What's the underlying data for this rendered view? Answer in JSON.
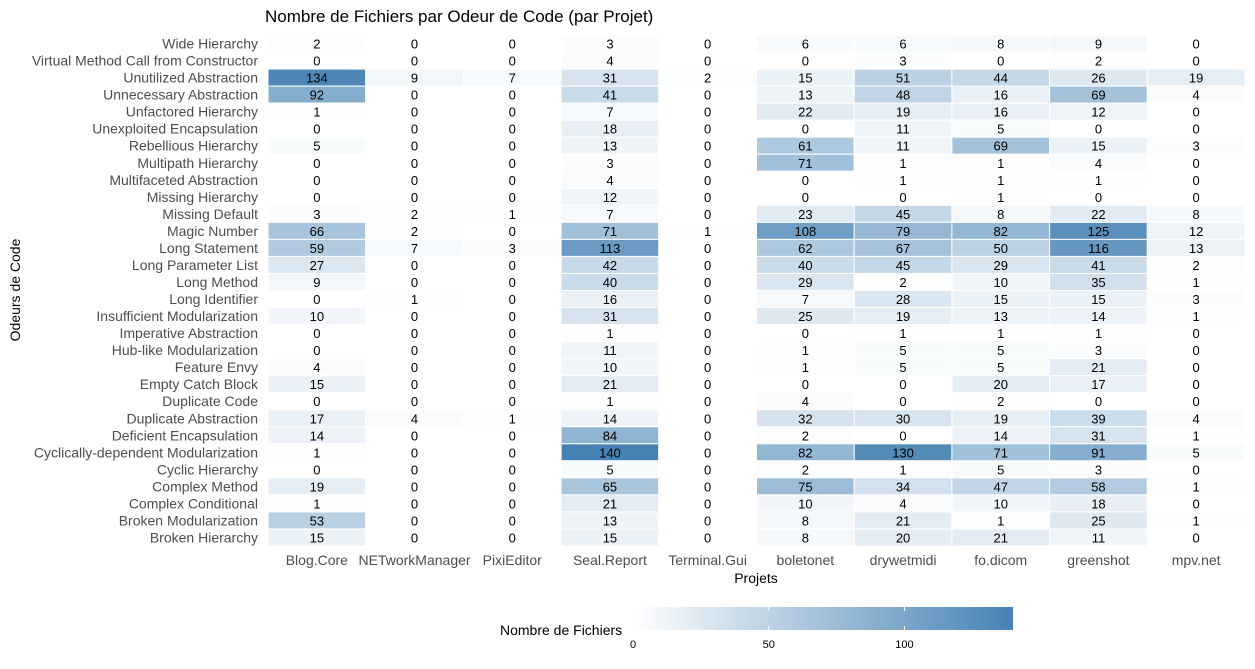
{
  "chart_data": {
    "type": "heatmap",
    "title": "Nombre de Fichiers par Odeur de Code (par Projet)",
    "xlabel": "Projets",
    "ylabel": "Odeurs de Code",
    "x": [
      "Blog.Core",
      "NETworkManager",
      "PixiEditor",
      "Seal.Report",
      "Terminal.Gui",
      "boletonet",
      "drywetmidi",
      "fo.dicom",
      "greenshot",
      "mpv.net"
    ],
    "y": [
      "Wide Hierarchy",
      "Virtual Method Call from Constructor",
      "Unutilized Abstraction",
      "Unnecessary Abstraction",
      "Unfactored Hierarchy",
      "Unexploited Encapsulation",
      "Rebellious Hierarchy",
      "Multipath Hierarchy",
      "Multifaceted Abstraction",
      "Missing Hierarchy",
      "Missing Default",
      "Magic Number",
      "Long Statement",
      "Long Parameter List",
      "Long Method",
      "Long Identifier",
      "Insufficient Modularization",
      "Imperative Abstraction",
      "Hub-like Modularization",
      "Feature Envy",
      "Empty Catch Block",
      "Duplicate Code",
      "Duplicate Abstraction",
      "Deficient Encapsulation",
      "Cyclically-dependent Modularization",
      "Cyclic Hierarchy",
      "Complex Method",
      "Complex Conditional",
      "Broken Modularization",
      "Broken Hierarchy"
    ],
    "values": [
      [
        2,
        0,
        0,
        3,
        0,
        6,
        6,
        8,
        9,
        0
      ],
      [
        0,
        0,
        0,
        4,
        0,
        0,
        3,
        0,
        2,
        0
      ],
      [
        134,
        9,
        7,
        31,
        2,
        15,
        51,
        44,
        26,
        19
      ],
      [
        92,
        0,
        0,
        41,
        0,
        13,
        48,
        16,
        69,
        4
      ],
      [
        1,
        0,
        0,
        7,
        0,
        22,
        19,
        16,
        12,
        0
      ],
      [
        0,
        0,
        0,
        18,
        0,
        0,
        11,
        5,
        0,
        0
      ],
      [
        5,
        0,
        0,
        13,
        0,
        61,
        11,
        69,
        15,
        3
      ],
      [
        0,
        0,
        0,
        3,
        0,
        71,
        1,
        1,
        4,
        0
      ],
      [
        0,
        0,
        0,
        4,
        0,
        0,
        1,
        1,
        1,
        0
      ],
      [
        0,
        0,
        0,
        12,
        0,
        0,
        0,
        1,
        0,
        0
      ],
      [
        3,
        2,
        1,
        7,
        0,
        23,
        45,
        8,
        22,
        8
      ],
      [
        66,
        2,
        0,
        71,
        1,
        108,
        79,
        82,
        125,
        12
      ],
      [
        59,
        7,
        3,
        113,
        0,
        62,
        67,
        50,
        116,
        13
      ],
      [
        27,
        0,
        0,
        42,
        0,
        40,
        45,
        29,
        41,
        2
      ],
      [
        9,
        0,
        0,
        40,
        0,
        29,
        2,
        10,
        35,
        1
      ],
      [
        0,
        1,
        0,
        16,
        0,
        7,
        28,
        15,
        15,
        3
      ],
      [
        10,
        0,
        0,
        31,
        0,
        25,
        19,
        13,
        14,
        1
      ],
      [
        0,
        0,
        0,
        1,
        0,
        0,
        1,
        1,
        1,
        0
      ],
      [
        0,
        0,
        0,
        11,
        0,
        1,
        5,
        5,
        3,
        0
      ],
      [
        4,
        0,
        0,
        10,
        0,
        1,
        5,
        5,
        21,
        0
      ],
      [
        15,
        0,
        0,
        21,
        0,
        0,
        0,
        20,
        17,
        0
      ],
      [
        0,
        0,
        0,
        1,
        0,
        4,
        0,
        2,
        0,
        0
      ],
      [
        17,
        4,
        1,
        14,
        0,
        32,
        30,
        19,
        39,
        4
      ],
      [
        14,
        0,
        0,
        84,
        0,
        2,
        0,
        14,
        31,
        1
      ],
      [
        1,
        0,
        0,
        140,
        0,
        82,
        130,
        71,
        91,
        5
      ],
      [
        0,
        0,
        0,
        5,
        0,
        2,
        1,
        5,
        3,
        0
      ],
      [
        19,
        0,
        0,
        65,
        0,
        75,
        34,
        47,
        58,
        1
      ],
      [
        1,
        0,
        0,
        21,
        0,
        10,
        4,
        10,
        18,
        0
      ],
      [
        53,
        0,
        0,
        13,
        0,
        8,
        21,
        1,
        25,
        1
      ],
      [
        15,
        0,
        0,
        15,
        0,
        8,
        20,
        21,
        11,
        0
      ]
    ],
    "color_scale": {
      "low": "#ffffff",
      "high": "#4682b4",
      "min": 0,
      "max": 140
    },
    "legend": {
      "title": "Nombre de Fichiers",
      "placement": "bottom",
      "ticks": [
        0,
        50,
        100
      ]
    },
    "grid": true
  }
}
